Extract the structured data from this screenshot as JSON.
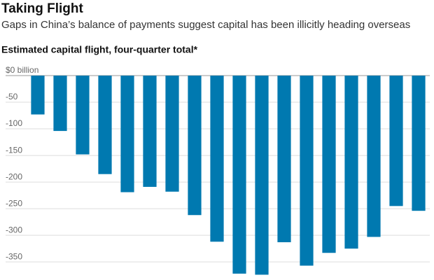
{
  "chart_data": {
    "type": "bar",
    "title": "Taking Flight",
    "subtitle": "Gaps in China’s balance of payments suggest capital has been illicitly heading overseas",
    "chart_label": "Estimated capital flight, four-quarter total*",
    "categories": [
      null,
      null,
      null,
      null,
      null,
      null,
      null,
      null,
      null,
      null,
      null,
      null,
      null,
      null,
      null,
      null,
      null,
      null
    ],
    "values": [
      -73,
      -104,
      -148,
      -185,
      -219,
      -209,
      -218,
      -262,
      -312,
      -372,
      -374,
      -313,
      -357,
      -333,
      -325,
      -303,
      -245,
      -254
    ],
    "color": "#0079b0",
    "ylim": [
      -380,
      0
    ],
    "yticks": [
      {
        "value": 0,
        "label": "$0 billion"
      },
      -50,
      -100,
      -150,
      -200,
      -250,
      -300,
      -350
    ],
    "grid": true
  }
}
